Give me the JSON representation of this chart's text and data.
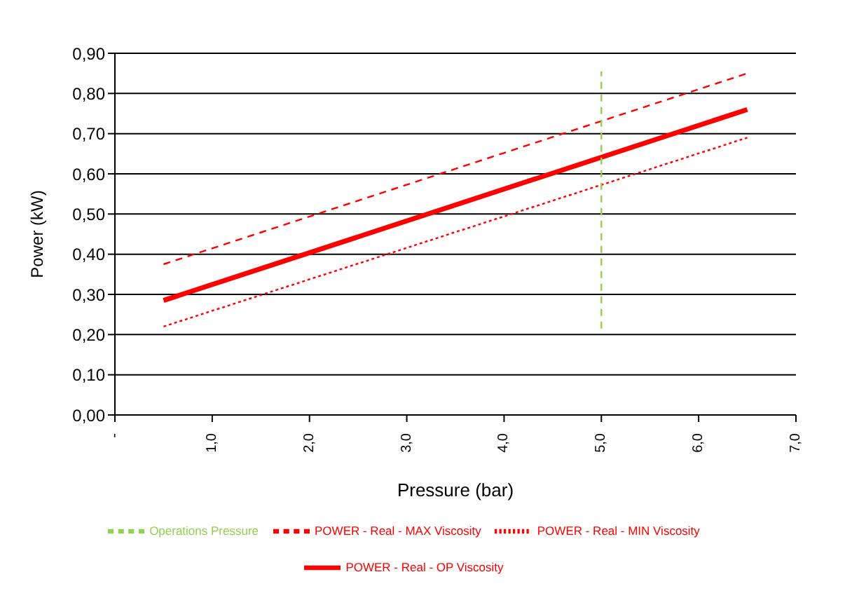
{
  "chart_data": {
    "type": "line",
    "xlabel": "Pressure (bar)",
    "ylabel": "Power (kW)",
    "series": [
      {
        "name": "POWER - Real - MIN Viscosity",
        "color": "#ff0000",
        "line_style": "dotted",
        "x": [
          0.5,
          6.5
        ],
        "values": [
          0.22,
          0.69
        ]
      },
      {
        "name": "POWER - Real - OP Viscosity",
        "color": "#ff0000",
        "line_style": "solid",
        "x": [
          0.5,
          6.5
        ],
        "values": [
          0.285,
          0.76
        ]
      },
      {
        "name": "POWER - Real - MAX Viscosity",
        "color": "#ff0000",
        "line_style": "dashed",
        "x": [
          0.5,
          6.5
        ],
        "values": [
          0.375,
          0.85
        ]
      },
      {
        "name": "Operations Pressure",
        "color": "#92d050",
        "line_style": "dashed",
        "x": [
          5,
          5
        ],
        "values": [
          0.215,
          0.855
        ]
      }
    ],
    "xlim": [
      0,
      7
    ],
    "xticks": [
      {
        "value": 0,
        "label": "-"
      },
      {
        "value": 1,
        "label": "1,0"
      },
      {
        "value": 2,
        "label": "2,0"
      },
      {
        "value": 3,
        "label": "3,0"
      },
      {
        "value": 4,
        "label": "4,0"
      },
      {
        "value": 5,
        "label": "5,0"
      },
      {
        "value": 6,
        "label": "6,0"
      },
      {
        "value": 7,
        "label": "7,0"
      }
    ],
    "ylim": [
      0,
      0.9
    ],
    "yticks": [
      {
        "value": 0,
        "label": "0,00"
      },
      {
        "value": 0.1,
        "label": "0,10"
      },
      {
        "value": 0.2,
        "label": "0,20"
      },
      {
        "value": 0.3,
        "label": "0,30"
      },
      {
        "value": 0.4,
        "label": "0,40"
      },
      {
        "value": 0.5,
        "label": "0,50"
      },
      {
        "value": 0.6,
        "label": "0,60"
      },
      {
        "value": 0.7,
        "label": "0,70"
      },
      {
        "value": 0.8,
        "label": "0,80"
      },
      {
        "value": 0.9,
        "label": "0,90"
      }
    ],
    "grid": "y",
    "legend": "bottom",
    "marker": "none"
  }
}
